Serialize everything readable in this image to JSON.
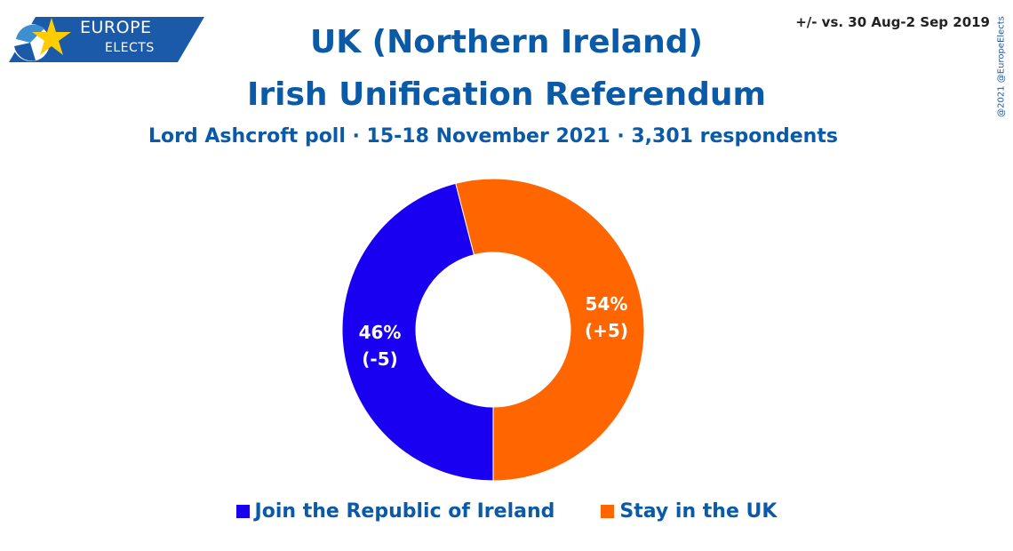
{
  "logo": {
    "line1": "EUROPE",
    "line2": "ELECTS"
  },
  "comparison_note": "+/- vs. 30 Aug-2 Sep 2019",
  "credit": "@2021 @EuropeElects",
  "chart_data": {
    "type": "pie",
    "title": "UK (Northern Ireland)",
    "title2": "Irish Unification Referendum",
    "subtitle": "Lord Ashcroft poll · 15-18 November 2021 · 3,301 respondents",
    "donut": true,
    "slices": [
      {
        "name": "Stay in the UK",
        "value": 54,
        "change": "+5",
        "color": "#ff6600",
        "label": "54%",
        "change_label": "(+5)"
      },
      {
        "name": "Join the Republic of Ireland",
        "value": 46,
        "change": "-5",
        "color": "#1a00f0",
        "label": "46%",
        "change_label": "(-5)"
      }
    ],
    "legend": [
      {
        "label": "Join the Republic of Ireland",
        "color": "#1a00f0"
      },
      {
        "label": "Stay in the UK",
        "color": "#ff6600"
      }
    ],
    "legend_position": "bottom"
  }
}
